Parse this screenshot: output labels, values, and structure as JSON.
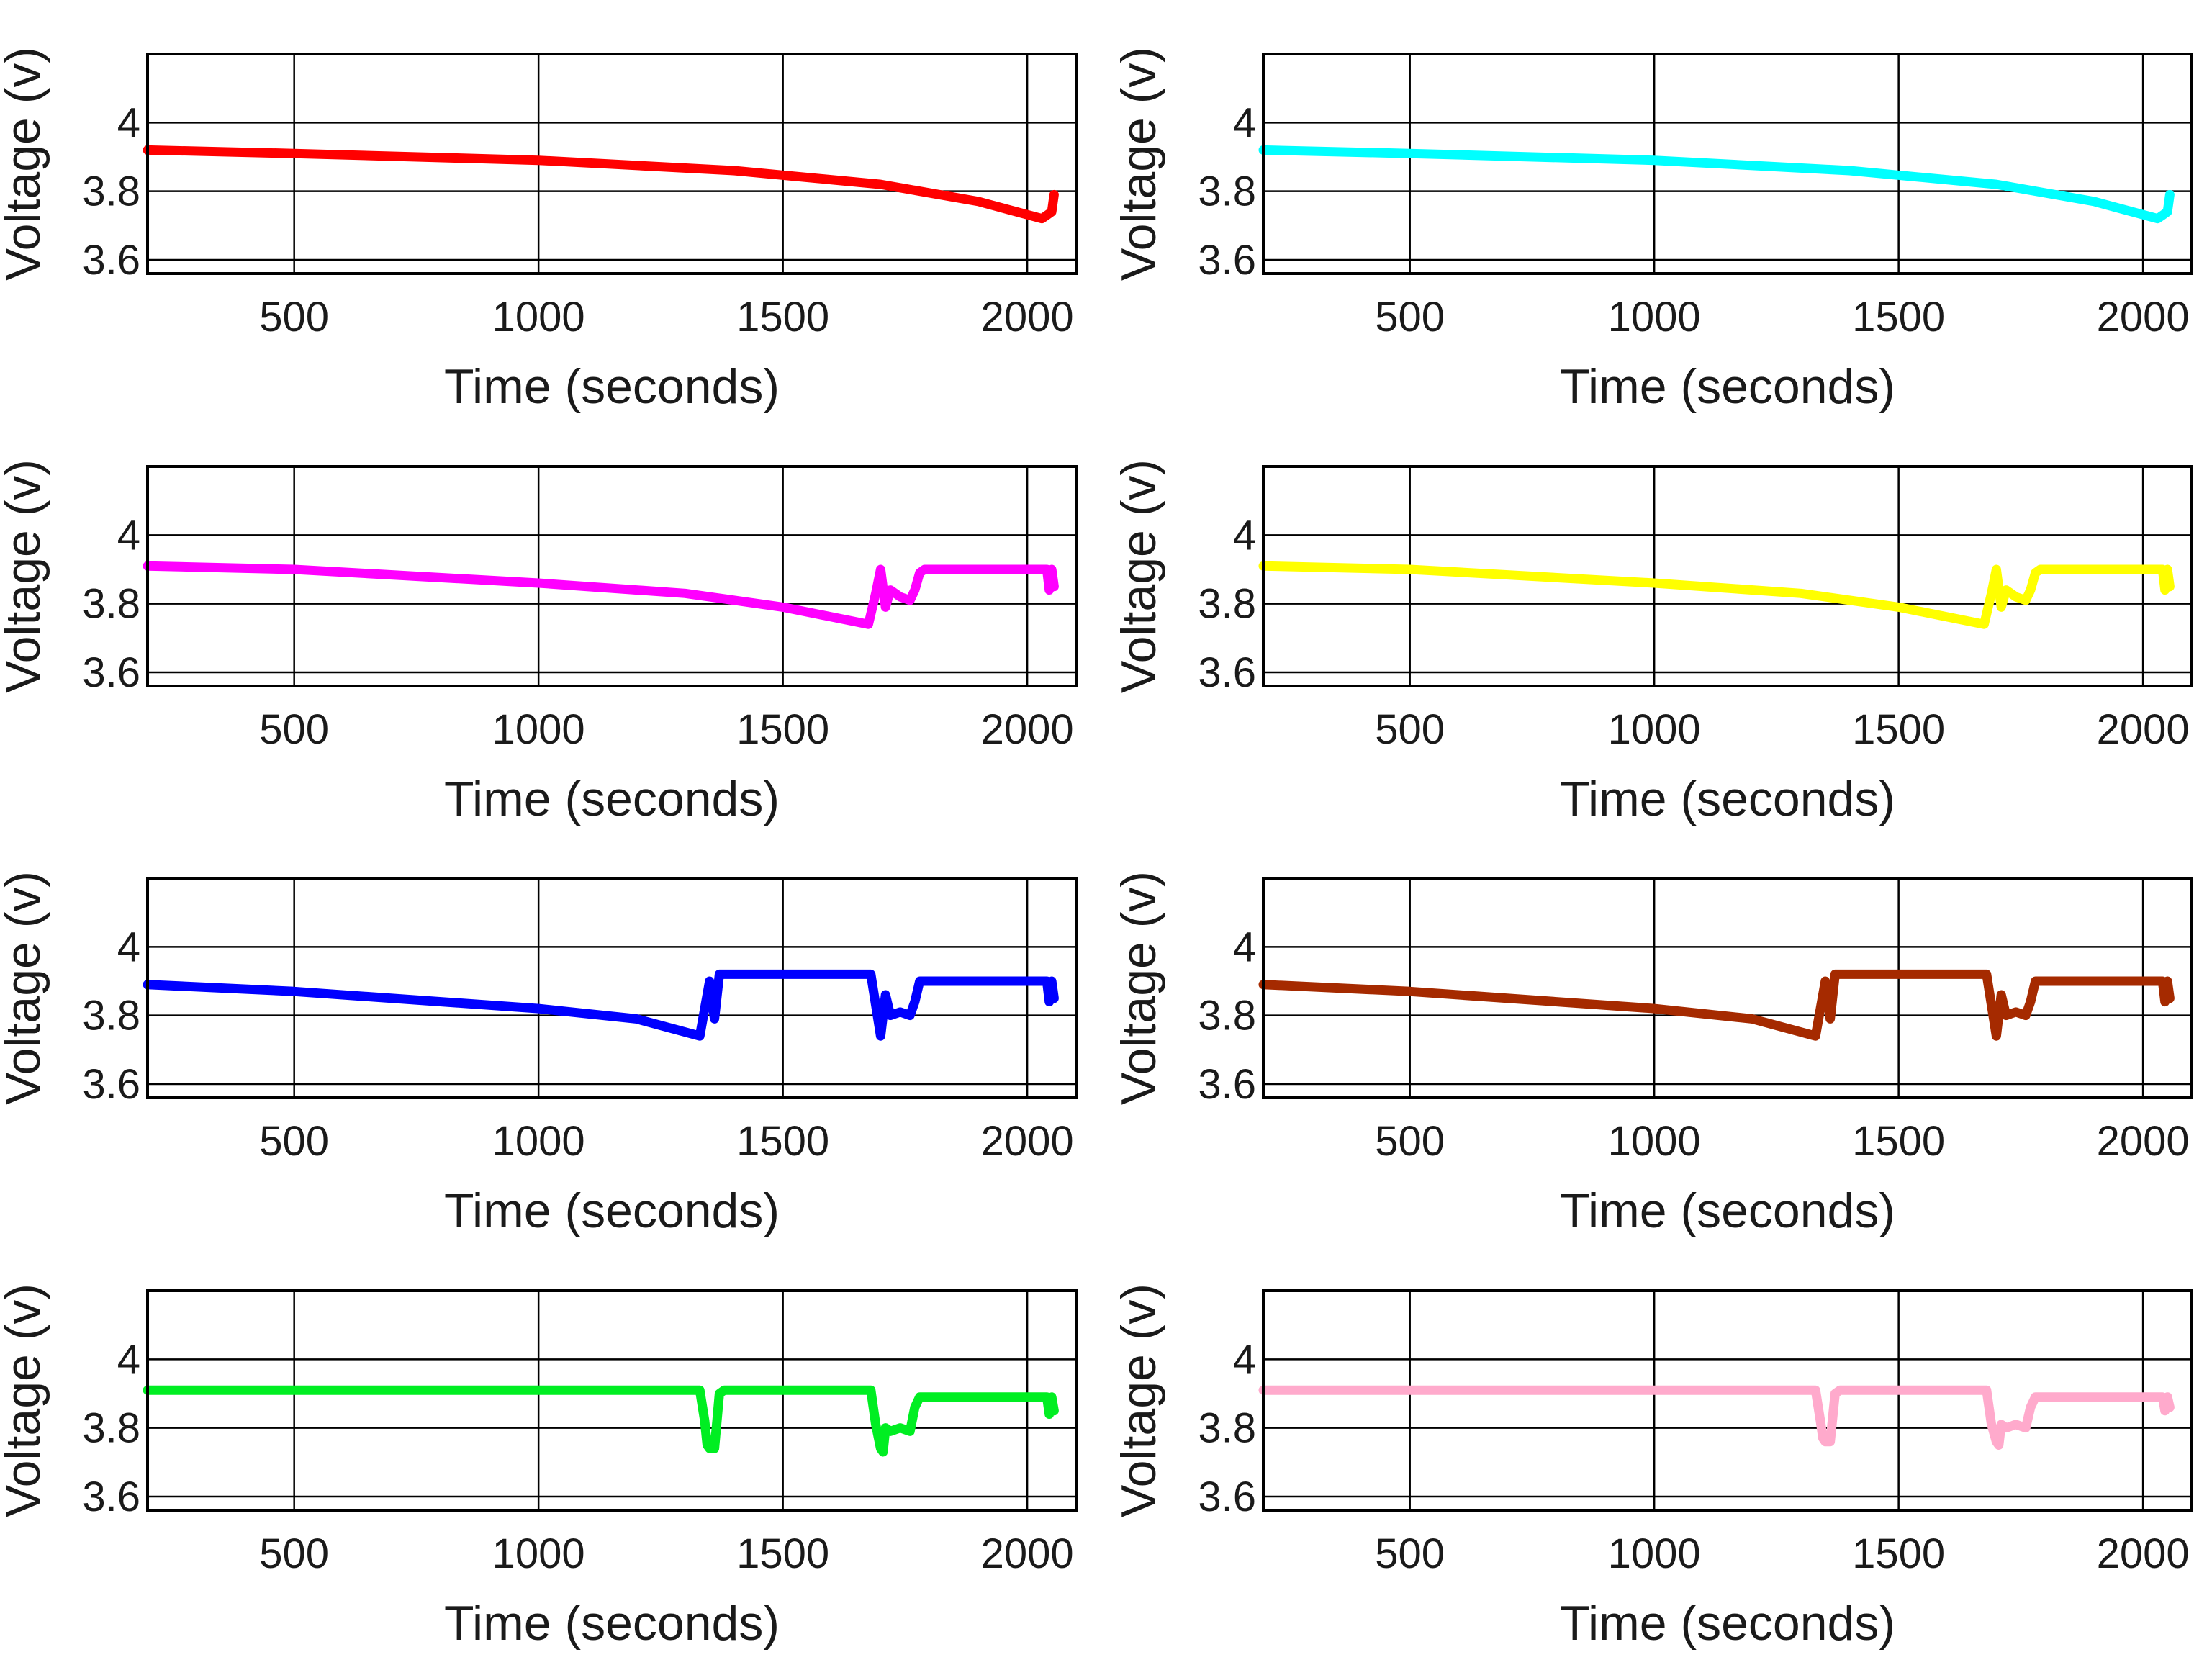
{
  "chart_data": [
    {
      "type": "line",
      "xlabel": "Time (seconds)",
      "ylabel": "Voltage (v)",
      "xlim": [
        200,
        2100
      ],
      "ylim": [
        3.56,
        4.2
      ],
      "xticks": [
        "500",
        "1000",
        "1500",
        "2000"
      ],
      "yticks": [
        "3.6",
        "3.8",
        "4"
      ],
      "grid": true,
      "series": [
        {
          "color": "#ff0000",
          "x": [
            200,
            500,
            1000,
            1400,
            1700,
            1900,
            2030,
            2040,
            2050,
            2055
          ],
          "y": [
            3.92,
            3.91,
            3.89,
            3.86,
            3.82,
            3.77,
            3.72,
            3.73,
            3.74,
            3.79
          ]
        }
      ]
    },
    {
      "type": "line",
      "xlabel": "Time (seconds)",
      "ylabel": "Voltage (v)",
      "xlim": [
        200,
        2100
      ],
      "ylim": [
        3.56,
        4.2
      ],
      "xticks": [
        "500",
        "1000",
        "1500",
        "2000"
      ],
      "yticks": [
        "3.6",
        "3.8",
        "4"
      ],
      "grid": true,
      "series": [
        {
          "color": "#00ffff",
          "x": [
            200,
            500,
            1000,
            1400,
            1700,
            1900,
            2030,
            2040,
            2050,
            2055
          ],
          "y": [
            3.92,
            3.91,
            3.89,
            3.86,
            3.82,
            3.77,
            3.72,
            3.73,
            3.74,
            3.79
          ]
        }
      ]
    },
    {
      "type": "line",
      "xlabel": "Time (seconds)",
      "ylabel": "Voltage (v)",
      "xlim": [
        200,
        2100
      ],
      "ylim": [
        3.56,
        4.2
      ],
      "xticks": [
        "500",
        "1000",
        "1500",
        "2000"
      ],
      "yticks": [
        "3.6",
        "3.8",
        "4"
      ],
      "grid": true,
      "series": [
        {
          "color": "#ff00ff",
          "x": [
            200,
            500,
            1000,
            1300,
            1500,
            1675,
            1690,
            1700,
            1710,
            1720,
            1740,
            1760,
            1770,
            1780,
            1790,
            2040,
            2045,
            2050,
            2055
          ],
          "y": [
            3.91,
            3.9,
            3.86,
            3.83,
            3.79,
            3.74,
            3.83,
            3.9,
            3.79,
            3.84,
            3.82,
            3.81,
            3.84,
            3.89,
            3.9,
            3.9,
            3.84,
            3.9,
            3.85
          ]
        }
      ]
    },
    {
      "type": "line",
      "xlabel": "Time (seconds)",
      "ylabel": "Voltage (v)",
      "xlim": [
        200,
        2100
      ],
      "ylim": [
        3.56,
        4.2
      ],
      "xticks": [
        "500",
        "1000",
        "1500",
        "2000"
      ],
      "yticks": [
        "3.6",
        "3.8",
        "4"
      ],
      "grid": true,
      "series": [
        {
          "color": "#ffff00",
          "x": [
            200,
            500,
            1000,
            1300,
            1500,
            1675,
            1690,
            1700,
            1710,
            1720,
            1740,
            1760,
            1770,
            1780,
            1790,
            2040,
            2045,
            2050,
            2055
          ],
          "y": [
            3.91,
            3.9,
            3.86,
            3.83,
            3.79,
            3.74,
            3.83,
            3.9,
            3.79,
            3.84,
            3.82,
            3.81,
            3.84,
            3.89,
            3.9,
            3.9,
            3.84,
            3.9,
            3.85
          ]
        }
      ]
    },
    {
      "type": "line",
      "xlabel": "Time (seconds)",
      "ylabel": "Voltage (v)",
      "xlim": [
        200,
        2100
      ],
      "ylim": [
        3.56,
        4.2
      ],
      "xticks": [
        "500",
        "1000",
        "1500",
        "2000"
      ],
      "yticks": [
        "3.6",
        "3.8",
        "4"
      ],
      "grid": true,
      "series": [
        {
          "color": "#0000ff",
          "x": [
            200,
            500,
            1000,
            1200,
            1330,
            1340,
            1350,
            1360,
            1370,
            1680,
            1690,
            1700,
            1710,
            1720,
            1740,
            1760,
            1770,
            1780,
            1790,
            2040,
            2045,
            2050,
            2055
          ],
          "y": [
            3.89,
            3.87,
            3.82,
            3.79,
            3.74,
            3.82,
            3.9,
            3.79,
            3.92,
            3.92,
            3.83,
            3.74,
            3.86,
            3.8,
            3.81,
            3.8,
            3.84,
            3.9,
            3.9,
            3.9,
            3.84,
            3.9,
            3.85
          ]
        }
      ]
    },
    {
      "type": "line",
      "xlabel": "Time (seconds)",
      "ylabel": "Voltage (v)",
      "xlim": [
        200,
        2100
      ],
      "ylim": [
        3.56,
        4.2
      ],
      "xticks": [
        "500",
        "1000",
        "1500",
        "2000"
      ],
      "yticks": [
        "3.6",
        "3.8",
        "4"
      ],
      "grid": true,
      "series": [
        {
          "color": "#a52a00",
          "x": [
            200,
            500,
            1000,
            1200,
            1330,
            1340,
            1350,
            1360,
            1370,
            1680,
            1690,
            1700,
            1710,
            1720,
            1740,
            1760,
            1770,
            1780,
            1790,
            2040,
            2045,
            2050,
            2055
          ],
          "y": [
            3.89,
            3.87,
            3.82,
            3.79,
            3.74,
            3.82,
            3.9,
            3.79,
            3.92,
            3.92,
            3.83,
            3.74,
            3.86,
            3.8,
            3.81,
            3.8,
            3.84,
            3.9,
            3.9,
            3.9,
            3.84,
            3.9,
            3.85
          ]
        }
      ]
    },
    {
      "type": "line",
      "xlabel": "Time (seconds)",
      "ylabel": "Voltage (v)",
      "xlim": [
        200,
        2100
      ],
      "ylim": [
        3.56,
        4.2
      ],
      "xticks": [
        "500",
        "1000",
        "1500",
        "2000"
      ],
      "yticks": [
        "3.6",
        "3.8",
        "4"
      ],
      "grid": true,
      "series": [
        {
          "color": "#00ee22",
          "x": [
            200,
            1000,
            1330,
            1340,
            1345,
            1350,
            1360,
            1370,
            1380,
            1680,
            1690,
            1700,
            1705,
            1710,
            1720,
            1740,
            1760,
            1770,
            1780,
            1790,
            2040,
            2045,
            2050,
            2055
          ],
          "y": [
            3.91,
            3.91,
            3.91,
            3.82,
            3.75,
            3.74,
            3.74,
            3.9,
            3.91,
            3.91,
            3.81,
            3.74,
            3.73,
            3.8,
            3.79,
            3.8,
            3.79,
            3.86,
            3.89,
            3.89,
            3.89,
            3.84,
            3.89,
            3.85
          ]
        }
      ]
    },
    {
      "type": "line",
      "xlabel": "Time (seconds)",
      "ylabel": "Voltage (v)",
      "xlim": [
        200,
        2100
      ],
      "ylim": [
        3.56,
        4.2
      ],
      "xticks": [
        "500",
        "1000",
        "1500",
        "2000"
      ],
      "yticks": [
        "3.6",
        "3.8",
        "4"
      ],
      "grid": true,
      "series": [
        {
          "color": "#ffaacc",
          "x": [
            200,
            1000,
            1330,
            1340,
            1345,
            1350,
            1360,
            1370,
            1380,
            1680,
            1690,
            1700,
            1705,
            1710,
            1720,
            1740,
            1760,
            1770,
            1780,
            1790,
            2040,
            2045,
            2050,
            2055
          ],
          "y": [
            3.91,
            3.91,
            3.91,
            3.82,
            3.77,
            3.76,
            3.76,
            3.9,
            3.91,
            3.91,
            3.81,
            3.76,
            3.75,
            3.81,
            3.8,
            3.81,
            3.8,
            3.86,
            3.89,
            3.89,
            3.89,
            3.85,
            3.89,
            3.86
          ]
        }
      ]
    }
  ]
}
